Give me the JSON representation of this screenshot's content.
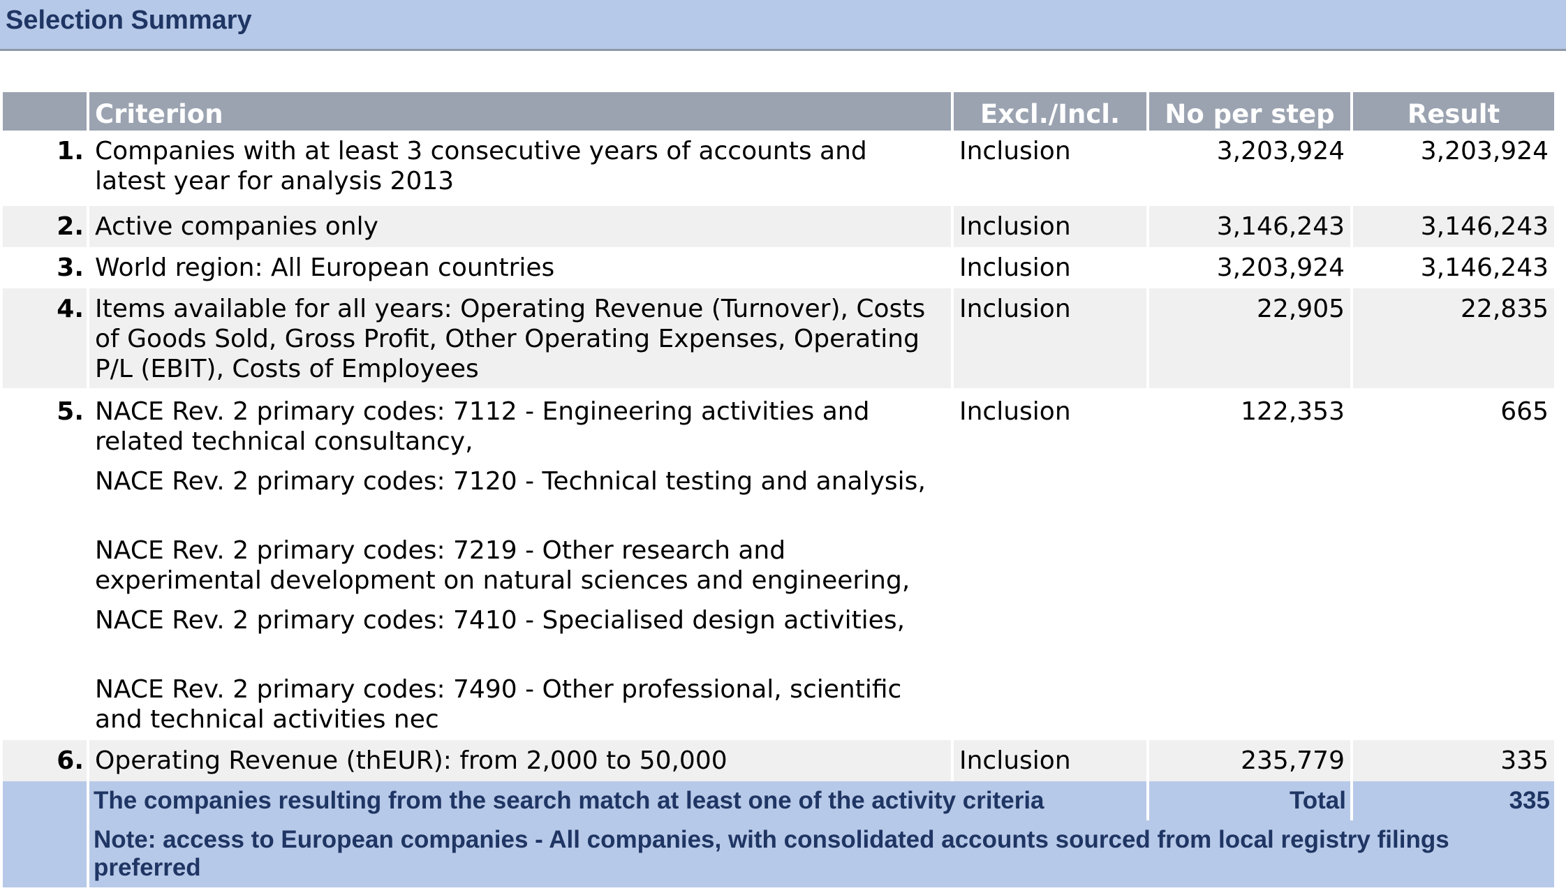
{
  "title": "Selection Summary",
  "table": {
    "headers": {
      "number": "",
      "criterion": "Criterion",
      "excl_incl": "Excl./Incl.",
      "no_per_step": "No per step",
      "result": "Result"
    },
    "rows": [
      {
        "number": "1.",
        "criterion": [
          "Companies with at least 3 consecutive years of accounts and latest year for analysis 2013"
        ],
        "excl_incl": "Inclusion",
        "no_per_step": "3,203,924",
        "result": "3,203,924"
      },
      {
        "number": "2.",
        "criterion": [
          "Active companies only"
        ],
        "excl_incl": "Inclusion",
        "no_per_step": "3,146,243",
        "result": "3,146,243"
      },
      {
        "number": "3.",
        "criterion": [
          "World region: All European countries"
        ],
        "excl_incl": "Inclusion",
        "no_per_step": "3,203,924",
        "result": "3,146,243"
      },
      {
        "number": "4.",
        "criterion": [
          "Items available for all years: Operating Revenue (Turnover), Costs of Goods Sold, Gross Profit, Other Operating Expenses, Operating P/L (EBIT), Costs of Employees"
        ],
        "excl_incl": "Inclusion",
        "no_per_step": "22,905",
        "result": "22,835"
      },
      {
        "number": "5.",
        "criterion": [
          "NACE Rev. 2 primary codes: 7112 - Engineering activities and related technical consultancy,",
          "NACE Rev. 2 primary codes: 7120 - Technical testing and analysis,",
          "NACE Rev. 2 primary codes: 7219 - Other research and experimental development on natural sciences and engineering,",
          "NACE Rev. 2 primary codes: 7410 - Specialised design activities,",
          "NACE Rev. 2 primary codes: 7490 - Other professional, scientific and technical activities nec"
        ],
        "excl_incl": "Inclusion",
        "no_per_step": "122,353",
        "result": "665"
      },
      {
        "number": "6.",
        "criterion": [
          "Operating Revenue (thEUR): from 2,000 to 50,000"
        ],
        "excl_incl": "Inclusion",
        "no_per_step": "235,779",
        "result": "335"
      }
    ],
    "footer": {
      "match_text": "The companies resulting from the search match at least one of the activity criteria",
      "total_label": "Total",
      "total_value": "335",
      "note": "Note: access to European companies - All companies, with consolidated accounts sourced from local registry filings preferred"
    }
  }
}
